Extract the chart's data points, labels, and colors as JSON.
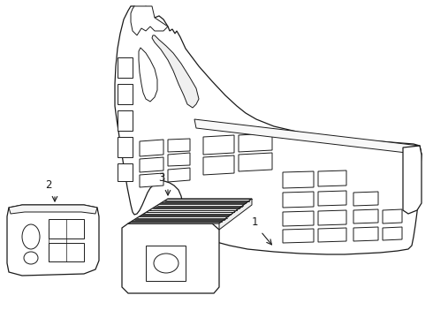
{
  "background_color": "#ffffff",
  "line_color": "#1a1a1a",
  "line_width": 0.9,
  "label_1": "1",
  "label_2": "2",
  "label_3": "3",
  "label_fontsize": 8.5,
  "fig_width": 4.9,
  "fig_height": 3.6,
  "dpi": 100
}
